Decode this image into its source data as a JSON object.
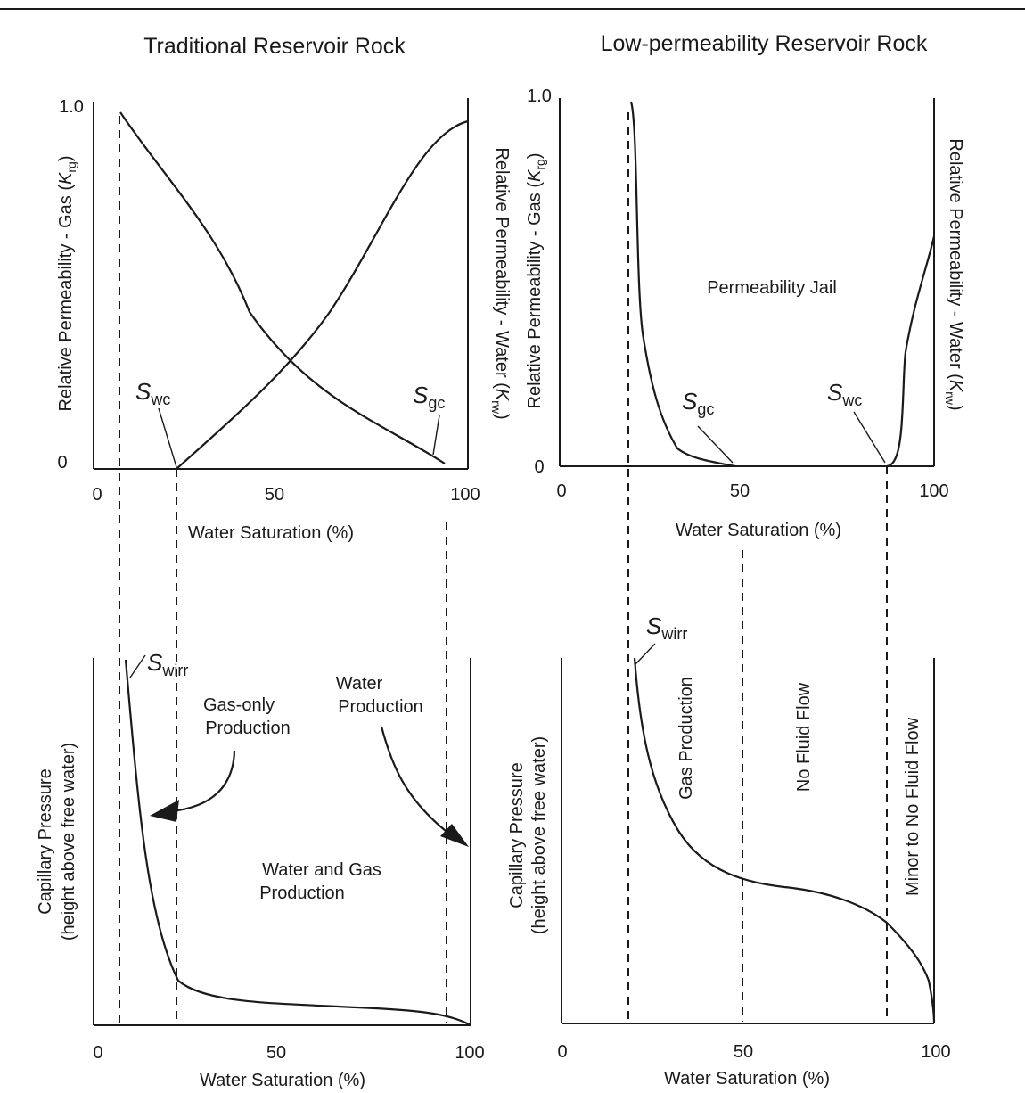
{
  "chart_data": [
    {
      "type": "line",
      "panel": "top-left",
      "title": "Traditional Reservoir Rock",
      "xlabel": "Water Saturation (%)",
      "ylabel_left": {
        "text": "Relative Permeability - Gas (",
        "symbol": "K",
        "sub": "rg",
        "close": ")"
      },
      "ylabel_right": {
        "text": "Relative Permeability - Water (",
        "symbol": "K",
        "sub": "rw",
        "close": ")"
      },
      "xlim": [
        0,
        100
      ],
      "ylim": [
        0,
        1.0
      ],
      "xticks": [
        "0",
        "50",
        "100"
      ],
      "yticks": [
        "0",
        "1.0"
      ],
      "series": [
        {
          "x": [
            7,
            15,
            25,
            35,
            45,
            55,
            65,
            75,
            85,
            95
          ],
          "y": [
            0.98,
            0.85,
            0.7,
            0.52,
            0.35,
            0.27,
            0.2,
            0.13,
            0.07,
            0.015
          ]
        },
        {
          "x": [
            23,
            30,
            40,
            50,
            60,
            70,
            80,
            90,
            100
          ],
          "y": [
            0,
            0.07,
            0.16,
            0.25,
            0.35,
            0.48,
            0.65,
            0.82,
            0.97
          ]
        }
      ],
      "annotations": [
        {
          "symbol": "S",
          "sub": "wc",
          "x": 23,
          "y": 0
        },
        {
          "symbol": "S",
          "sub": "gc",
          "x": 94,
          "y": 0.015
        }
      ],
      "cutoffs": [
        7,
        23,
        94
      ]
    },
    {
      "type": "line",
      "panel": "top-right",
      "title": "Low-permeability Reservoir Rock",
      "xlabel": "Water Saturation (%)",
      "ylabel_left": {
        "text": "Relative Permeability - Gas (",
        "symbol": "K",
        "sub": "rg",
        "close": ")"
      },
      "ylabel_right": {
        "text": "Relative Permeability - Water (",
        "symbol": "K",
        "sub": "rw",
        "close": ")"
      },
      "xlim": [
        0,
        100
      ],
      "ylim": [
        0,
        1.0
      ],
      "xticks": [
        "0",
        "50",
        "100"
      ],
      "yticks": [
        "0",
        "1.0"
      ],
      "series": [
        {
          "x": [
            20,
            21,
            22,
            23,
            25,
            28,
            32,
            36,
            40,
            45,
            50
          ],
          "y": [
            1.0,
            0.95,
            0.6,
            0.35,
            0.22,
            0.15,
            0.08,
            0.04,
            0.025,
            0.01,
            0
          ]
        },
        {
          "x": [
            88,
            89,
            90,
            91,
            93,
            95,
            97,
            100
          ],
          "y": [
            0,
            0.01,
            0.03,
            0.08,
            0.35,
            0.45,
            0.55,
            0.65
          ]
        }
      ],
      "region_label": "Permeability Jail",
      "annotations": [
        {
          "symbol": "S",
          "sub": "gc",
          "x": 50,
          "y": 0
        },
        {
          "symbol": "S",
          "sub": "wc",
          "x": 88,
          "y": 0
        }
      ],
      "cutoffs": [
        20,
        88
      ]
    },
    {
      "type": "line",
      "panel": "bottom-left",
      "xlabel": "Water Saturation (%)",
      "ylabel": [
        "Capillary Pressure",
        "(height above free water)"
      ],
      "xlim": [
        0,
        100
      ],
      "xticks": [
        "0",
        "50",
        "100"
      ],
      "series": [
        {
          "x": [
            10,
            12,
            14,
            16,
            18,
            20,
            23,
            26,
            30,
            40,
            50,
            60,
            70,
            80,
            90,
            95,
            100
          ],
          "y": [
            1.0,
            0.85,
            0.6,
            0.4,
            0.25,
            0.15,
            0.09,
            0.07,
            0.06,
            0.055,
            0.05,
            0.045,
            0.04,
            0.035,
            0.03,
            0.02,
            0
          ]
        }
      ],
      "annotations": [
        {
          "symbol": "S",
          "sub": "wirr",
          "x": 10,
          "y": 1.0
        },
        {
          "text": [
            "Gas-only",
            "Production"
          ]
        },
        {
          "text": [
            "Water",
            "Production"
          ]
        },
        {
          "text": [
            "Water and Gas",
            "Production"
          ]
        }
      ],
      "cutoffs": [
        7,
        23,
        94
      ]
    },
    {
      "type": "line",
      "panel": "bottom-right",
      "xlabel": "Water Saturation (%)",
      "ylabel": [
        "Capillary Pressure",
        "(height above free water)"
      ],
      "xlim": [
        0,
        100
      ],
      "xticks": [
        "0",
        "50",
        "100"
      ],
      "series": [
        {
          "x": [
            20,
            21,
            22,
            24,
            27,
            30,
            35,
            40,
            50,
            60,
            70,
            80,
            88,
            92,
            95,
            98,
            100
          ],
          "y": [
            1.0,
            0.8,
            0.68,
            0.6,
            0.52,
            0.45,
            0.38,
            0.35,
            0.33,
            0.32,
            0.31,
            0.29,
            0.25,
            0.21,
            0.17,
            0.12,
            0
          ]
        }
      ],
      "annotations": [
        {
          "symbol": "S",
          "sub": "wirr",
          "x": 20,
          "y": 1.0
        },
        {
          "text": "Gas Production"
        },
        {
          "text": "No Fluid Flow"
        },
        {
          "text": "Minor to No Fluid Flow"
        }
      ],
      "cutoffs": [
        20,
        50,
        88
      ]
    }
  ]
}
